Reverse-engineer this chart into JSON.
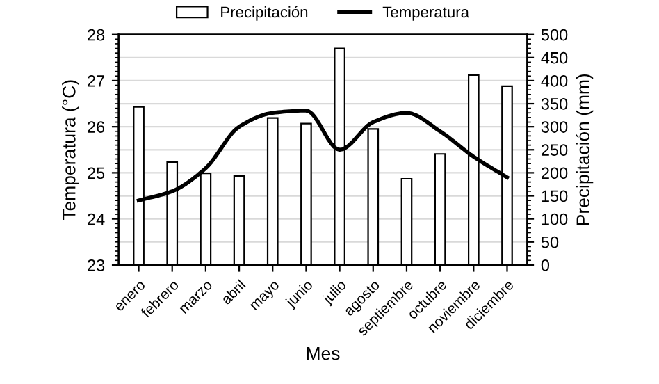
{
  "chart_data": {
    "type": "bar",
    "xlabel": "Mes",
    "ylabel": "Temperatura (°C)",
    "y2label": "Precipitación (mm)",
    "categories": [
      "enero",
      "febrero",
      "marzo",
      "abril",
      "mayo",
      "junio",
      "julio",
      "agosto",
      "septiembre",
      "octubre",
      "noviembre",
      "diciembre"
    ],
    "series": [
      {
        "name": "Precipitación",
        "axis": "y2",
        "color": "#ffffff",
        "values": [
          343,
          223,
          199,
          193,
          319,
          307,
          470,
          295,
          187,
          241,
          412,
          388
        ]
      },
      {
        "name": "Temperatura",
        "type": "line",
        "axis": "y",
        "color": "#000000",
        "values": [
          24.4,
          24.6,
          25.1,
          26.0,
          26.3,
          26.35,
          25.5,
          26.1,
          26.3,
          25.9,
          25.35,
          24.9
        ]
      }
    ],
    "ylim": [
      23,
      28
    ],
    "yticks": [
      23,
      24,
      25,
      26,
      27,
      28
    ],
    "y2lim": [
      0,
      500
    ],
    "y2ticks": [
      0,
      50,
      100,
      150,
      200,
      250,
      300,
      350,
      400,
      450,
      500
    ],
    "grid": "y",
    "legend": "top"
  }
}
